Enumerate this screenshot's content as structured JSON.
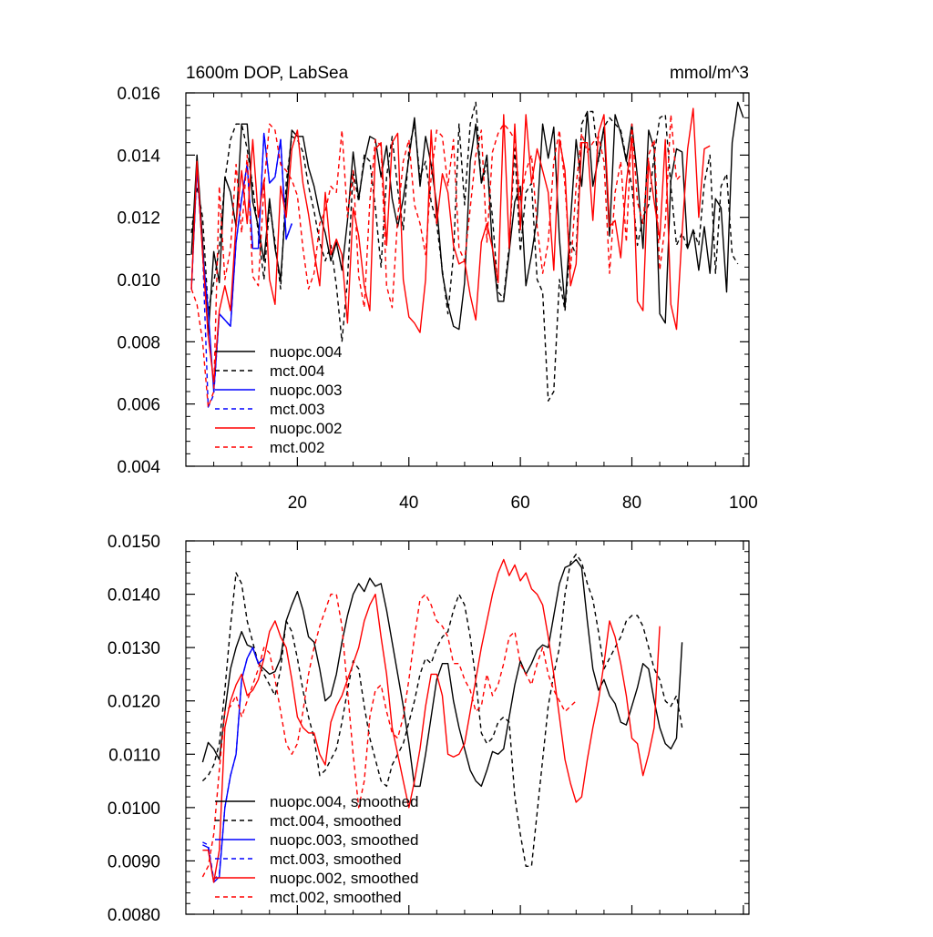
{
  "colors": {
    "black": "#000000",
    "blue": "#0000ff",
    "red": "#ff0000"
  },
  "chart_data": [
    {
      "type": "line",
      "title": "1600m DOP, LabSea",
      "units": "mmol/m^3",
      "xlim": [
        0,
        101
      ],
      "ylim": [
        0.004,
        0.016
      ],
      "xticks": [
        20,
        40,
        60,
        80,
        100
      ],
      "xtick_labels": [
        "20",
        "40",
        "60",
        "80",
        "100"
      ],
      "yticks": [
        0.004,
        0.006,
        0.008,
        0.01,
        0.012,
        0.014,
        0.016
      ],
      "ytick_labels": [
        "0.004",
        "0.006",
        "0.008",
        "0.010",
        "0.012",
        "0.014",
        "0.016"
      ],
      "series": [
        {
          "name": "nuopc.004",
          "color": "black",
          "dash": false,
          "x_start": 1,
          "values": [
            0.0108,
            0.014,
            0.0112,
            0.0082,
            0.0109,
            0.0099,
            0.0133,
            0.0128,
            0.0117,
            0.015,
            0.015,
            0.0125,
            0.0117,
            0.0106,
            0.0126,
            0.011,
            0.01,
            0.0126,
            0.0148,
            0.0146,
            0.0146,
            0.0136,
            0.013,
            0.0121,
            0.0115,
            0.0106,
            0.0112,
            0.0103,
            0.0119,
            0.0141,
            0.0126,
            0.0138,
            0.0146,
            0.0145,
            0.0133,
            0.0143,
            0.0126,
            0.0117,
            0.0126,
            0.0139,
            0.0152,
            0.013,
            0.0146,
            0.0137,
            0.0124,
            0.0102,
            0.0092,
            0.0085,
            0.0084,
            0.0099,
            0.0138,
            0.015,
            0.0131,
            0.014,
            0.011,
            0.0093,
            0.0093,
            0.0109,
            0.0125,
            0.013,
            0.0098,
            0.0108,
            0.012,
            0.015,
            0.0139,
            0.0149,
            0.0113,
            0.0091,
            0.0119,
            0.0145,
            0.013,
            0.0154,
            0.013,
            0.0139,
            0.0149,
            0.0114,
            0.0153,
            0.0147,
            0.0138,
            0.015,
            0.0133,
            0.011,
            0.0148,
            0.0142,
            0.0089,
            0.0086,
            0.0132,
            0.0142,
            0.0141,
            0.011,
            0.0116,
            0.0103,
            0.0117,
            0.0102,
            0.0126,
            0.0123,
            0.0096,
            0.0144,
            0.0157,
            0.0152
          ]
        },
        {
          "name": "mct.004",
          "color": "black",
          "dash": true,
          "x_start": 1,
          "values": [
            0.0115,
            0.013,
            0.012,
            0.009,
            0.0099,
            0.011,
            0.0132,
            0.0145,
            0.015,
            0.015,
            0.0142,
            0.013,
            0.0115,
            0.01,
            0.0124,
            0.0112,
            0.0097,
            0.0131,
            0.0146,
            0.0145,
            0.0141,
            0.013,
            0.0122,
            0.0112,
            0.0106,
            0.0111,
            0.0098,
            0.008,
            0.01,
            0.0135,
            0.0125,
            0.014,
            0.0138,
            0.0123,
            0.0104,
            0.0133,
            0.0146,
            0.0129,
            0.0116,
            0.0142,
            0.015,
            0.0133,
            0.0138,
            0.0125,
            0.0118,
            0.0103,
            0.0089,
            0.0108,
            0.015,
            0.0124,
            0.015,
            0.0157,
            0.0131,
            0.0137,
            0.012,
            0.0096,
            0.0094,
            0.0111,
            0.0142,
            0.0109,
            0.0128,
            0.0131,
            0.01,
            0.0096,
            0.0061,
            0.0064,
            0.01,
            0.009,
            0.0112,
            0.0108,
            0.015,
            0.0154,
            0.0154,
            0.0138,
            0.0149,
            0.0152,
            0.015,
            0.0148,
            0.0139,
            0.013,
            0.0111,
            0.012,
            0.0124,
            0.014,
            0.0152,
            0.0153,
            0.013,
            0.0111,
            0.0115,
            0.011,
            0.0116,
            0.0111,
            0.0131,
            0.014,
            0.0102,
            0.013,
            0.0134,
            0.0108,
            0.0105
          ]
        },
        {
          "name": "nuopc.003",
          "color": "blue",
          "dash": false,
          "x_start": 1,
          "values": [
            0.0097,
            0.0136,
            0.0109,
            0.009,
            0.0064,
            0.0089,
            0.0087,
            0.0085,
            0.0112,
            0.0126,
            0.0137,
            0.011,
            0.011,
            0.0147,
            0.0131,
            0.0133,
            0.0145,
            0.0113,
            0.0118
          ]
        },
        {
          "name": "mct.003",
          "color": "blue",
          "dash": true,
          "x_start": 1,
          "values": [
            0.0097,
            0.0136,
            0.0109,
            0.0059,
            0.0063,
            0.0089,
            0.0087,
            0.0085,
            0.0112,
            0.0126,
            0.0137,
            0.011,
            0.011,
            0.0147,
            0.0131,
            0.0133,
            0.0145,
            0.0113,
            0.0118
          ]
        },
        {
          "name": "nuopc.002",
          "color": "red",
          "dash": false,
          "x_start": 1,
          "values": [
            0.0097,
            0.0138,
            0.0108,
            0.0082,
            0.0067,
            0.009,
            0.0098,
            0.009,
            0.0118,
            0.0135,
            0.0118,
            0.0145,
            0.012,
            0.0132,
            0.01,
            0.0092,
            0.013,
            0.012,
            0.0142,
            0.0148,
            0.0131,
            0.0121,
            0.0109,
            0.0098,
            0.0128,
            0.0108,
            0.0113,
            0.0108,
            0.0086,
            0.0123,
            0.0114,
            0.0098,
            0.009,
            0.0142,
            0.0144,
            0.0111,
            0.0144,
            0.0147,
            0.01,
            0.0088,
            0.0086,
            0.0083,
            0.01,
            0.0148,
            0.0118,
            0.0134,
            0.0128,
            0.0111,
            0.0105,
            0.0106,
            0.0095,
            0.0087,
            0.0112,
            0.0118,
            0.011,
            0.0099,
            0.0153,
            0.011,
            0.015,
            0.0116,
            0.0153,
            0.0131,
            0.0142,
            0.0135,
            0.0128,
            0.0103,
            0.0145,
            0.0135,
            0.0098,
            0.0105,
            0.0144,
            0.0144,
            0.0119,
            0.0147,
            0.0153,
            0.0117,
            0.0119,
            0.0107,
            0.0131,
            0.0146,
            0.0093,
            0.009,
            0.0138,
            0.0125,
            0.0113,
            0.0145,
            0.0092,
            0.0084,
            0.0115,
            0.0142,
            0.0155,
            0.012,
            0.0142,
            0.0143
          ]
        },
        {
          "name": "mct.002",
          "color": "red",
          "dash": true,
          "x_start": 1,
          "values": [
            0.0097,
            0.0092,
            0.008,
            0.0059,
            0.0064,
            0.013,
            0.01,
            0.011,
            0.0137,
            0.0115,
            0.014,
            0.0101,
            0.0098,
            0.013,
            0.015,
            0.0148,
            0.0137,
            0.0135,
            0.0132,
            0.0127,
            0.011,
            0.0097,
            0.0102,
            0.0118,
            0.0122,
            0.013,
            0.0128,
            0.0148,
            0.012,
            0.0135,
            0.0101,
            0.0091,
            0.0125,
            0.0145,
            0.0143,
            0.0098,
            0.0091,
            0.012,
            0.0138,
            0.0145,
            0.0124,
            0.0118,
            0.0108,
            0.0133,
            0.0148,
            0.0146,
            0.013,
            0.0145,
            0.011,
            0.0106,
            0.0123,
            0.014,
            0.0148,
            0.0112,
            0.0141,
            0.0147,
            0.015,
            0.0148,
            0.0145,
            0.0125,
            0.0135,
            0.014,
            0.0117,
            0.0102,
            0.0112,
            0.0138,
            0.0148,
            0.013,
            0.0103,
            0.013,
            0.0147,
            0.0141,
            0.0144,
            0.0146,
            0.0138,
            0.0102,
            0.0128,
            0.0138,
            0.0112,
            0.015,
            0.0125,
            0.0118,
            0.014,
            0.0145,
            0.0103,
            0.0118,
            0.0153,
            0.0132,
            0.0134
          ]
        }
      ],
      "legend": [
        "nuopc.004",
        "mct.004",
        "nuopc.003",
        "mct.003",
        "nuopc.002",
        "mct.002"
      ]
    },
    {
      "type": "line",
      "title": "",
      "xlim": [
        0,
        101
      ],
      "ylim": [
        0.008,
        0.015
      ],
      "yticks": [
        0.008,
        0.009,
        0.01,
        0.011,
        0.012,
        0.013,
        0.014,
        0.015
      ],
      "ytick_labels": [
        "0.0080",
        "0.0090",
        "0.0100",
        "0.0110",
        "0.0120",
        "0.0130",
        "0.0140",
        "0.0150"
      ],
      "series": [
        {
          "name": "nuopc.004, smoothed",
          "color": "black",
          "dash": false,
          "x_start": 3,
          "values": [
            0.01085,
            0.01122,
            0.0111,
            0.0109,
            0.0118,
            0.0126,
            0.013,
            0.0133,
            0.01305,
            0.013,
            0.0127,
            0.0126,
            0.0125,
            0.01255,
            0.0128,
            0.0135,
            0.0138,
            0.01405,
            0.0137,
            0.0132,
            0.0131,
            0.0126,
            0.012,
            0.0121,
            0.0125,
            0.0131,
            0.0136,
            0.014,
            0.0142,
            0.01405,
            0.0143,
            0.01415,
            0.0142,
            0.0137,
            0.0131,
            0.0125,
            0.0119,
            0.0112,
            0.0104,
            0.0104,
            0.011,
            0.0117,
            0.0124,
            0.0127,
            0.0127,
            0.012,
            0.0115,
            0.0111,
            0.0107,
            0.0105,
            0.0104,
            0.0107,
            0.01105,
            0.011,
            0.0111,
            0.0117,
            0.0123,
            0.01275,
            0.0125,
            0.0127,
            0.01295,
            0.01305,
            0.013,
            0.0136,
            0.0142,
            0.0145,
            0.01455,
            0.01465,
            0.0145,
            0.0135,
            0.0126,
            0.0122,
            0.0124,
            0.0121,
            0.01195,
            0.0116,
            0.01155,
            0.0119,
            0.01225,
            0.0127,
            0.0126,
            0.012,
            0.0115,
            0.0112,
            0.0111,
            0.0113,
            0.0131
          ]
        },
        {
          "name": "mct.004, smoothed",
          "color": "black",
          "dash": true,
          "x_start": 3,
          "values": [
            0.0105,
            0.0106,
            0.0108,
            0.0112,
            0.0122,
            0.0134,
            0.0144,
            0.0142,
            0.0135,
            0.0131,
            0.0127,
            0.0125,
            0.0123,
            0.0121,
            0.0126,
            0.0135,
            0.0133,
            0.0128,
            0.0122,
            0.0117,
            0.0113,
            0.0106,
            0.0107,
            0.0109,
            0.0111,
            0.0116,
            0.0122,
            0.01275,
            0.0126,
            0.0119,
            0.0113,
            0.0109,
            0.0105,
            0.0104,
            0.0108,
            0.011,
            0.0112,
            0.0116,
            0.012,
            0.0125,
            0.0128,
            0.0127,
            0.013,
            0.0132,
            0.0133,
            0.0137,
            0.014,
            0.0138,
            0.0132,
            0.0124,
            0.0114,
            0.0112,
            0.0113,
            0.0116,
            0.0117,
            0.0116,
            0.0102,
            0.0095,
            0.0089,
            0.0089,
            0.0099,
            0.0109,
            0.0119,
            0.0125,
            0.013,
            0.014,
            0.0146,
            0.01475,
            0.0146,
            0.0142,
            0.0139,
            0.0133,
            0.0126,
            0.0128,
            0.013,
            0.0132,
            0.0135,
            0.0136,
            0.0136,
            0.0134,
            0.013,
            0.0126,
            0.0124,
            0.012,
            0.0119,
            0.0121,
            0.0115
          ]
        },
        {
          "name": "nuopc.003, smoothed",
          "color": "blue",
          "dash": false,
          "x_start": 3,
          "values": [
            0.0093,
            0.00925,
            0.0086,
            0.0087,
            0.01,
            0.0106,
            0.011,
            0.0124,
            0.0128,
            0.013,
            0.0127,
            0.0128
          ]
        },
        {
          "name": "mct.003, smoothed",
          "color": "blue",
          "dash": true,
          "x_start": 3,
          "values": [
            0.00935,
            0.0093,
            0.00865,
            0.00875,
            0.01,
            0.0106,
            0.011,
            0.0124,
            0.0128,
            0.013,
            0.0127,
            0.0128
          ]
        },
        {
          "name": "nuopc.002, smoothed",
          "color": "red",
          "dash": false,
          "x_start": 3,
          "values": [
            0.0092,
            0.0092,
            0.0086,
            0.0092,
            0.0115,
            0.012,
            0.0123,
            0.0125,
            0.0121,
            0.0122,
            0.0124,
            0.0128,
            0.0133,
            0.0135,
            0.0132,
            0.013,
            0.0124,
            0.0117,
            0.0115,
            0.0114,
            0.0114,
            0.011,
            0.0108,
            0.0116,
            0.0119,
            0.0121,
            0.0124,
            0.0127,
            0.013,
            0.0135,
            0.0138,
            0.014,
            0.0132,
            0.0125,
            0.0115,
            0.011,
            0.0105,
            0.01,
            0.0105,
            0.0111,
            0.0119,
            0.0125,
            0.0125,
            0.0121,
            0.011,
            0.01095,
            0.011,
            0.0112,
            0.0118,
            0.0124,
            0.013,
            0.0135,
            0.014,
            0.0144,
            0.01465,
            0.01435,
            0.01455,
            0.01425,
            0.0144,
            0.0141,
            0.014,
            0.0138,
            0.0132,
            0.0125,
            0.0117,
            0.0109,
            0.01045,
            0.0101,
            0.0102,
            0.0109,
            0.0115,
            0.012,
            0.0127,
            0.0135,
            0.0132,
            0.0127,
            0.0121,
            0.0113,
            0.0112,
            0.0106,
            0.011,
            0.0115,
            0.0134
          ]
        },
        {
          "name": "mct.002, smoothed",
          "color": "red",
          "dash": true,
          "x_start": 3,
          "values": [
            0.0087,
            0.0089,
            0.0095,
            0.0107,
            0.0118,
            0.0119,
            0.0121,
            0.0117,
            0.012,
            0.0123,
            0.0126,
            0.013,
            0.0129,
            0.0124,
            0.0118,
            0.0112,
            0.011,
            0.0112,
            0.0118,
            0.0125,
            0.013,
            0.0134,
            0.0137,
            0.014,
            0.014,
            0.0134,
            0.0122,
            0.011,
            0.01,
            0.0105,
            0.0117,
            0.0122,
            0.0123,
            0.0118,
            0.0114,
            0.0113,
            0.0117,
            0.0124,
            0.0132,
            0.0139,
            0.014,
            0.0138,
            0.0135,
            0.0134,
            0.0132,
            0.0127,
            0.0127,
            0.0124,
            0.0122,
            0.0118,
            0.0119,
            0.0125,
            0.0121,
            0.0123,
            0.0127,
            0.0132,
            0.0133,
            0.0127,
            0.0125,
            0.0123,
            0.0127,
            0.013,
            0.0125,
            0.0122,
            0.012,
            0.0118,
            0.0119,
            0.012
          ]
        }
      ],
      "legend": [
        "nuopc.004, smoothed",
        "mct.004, smoothed",
        "nuopc.003, smoothed",
        "mct.003, smoothed",
        "nuopc.002, smoothed",
        "mct.002, smoothed"
      ]
    }
  ]
}
